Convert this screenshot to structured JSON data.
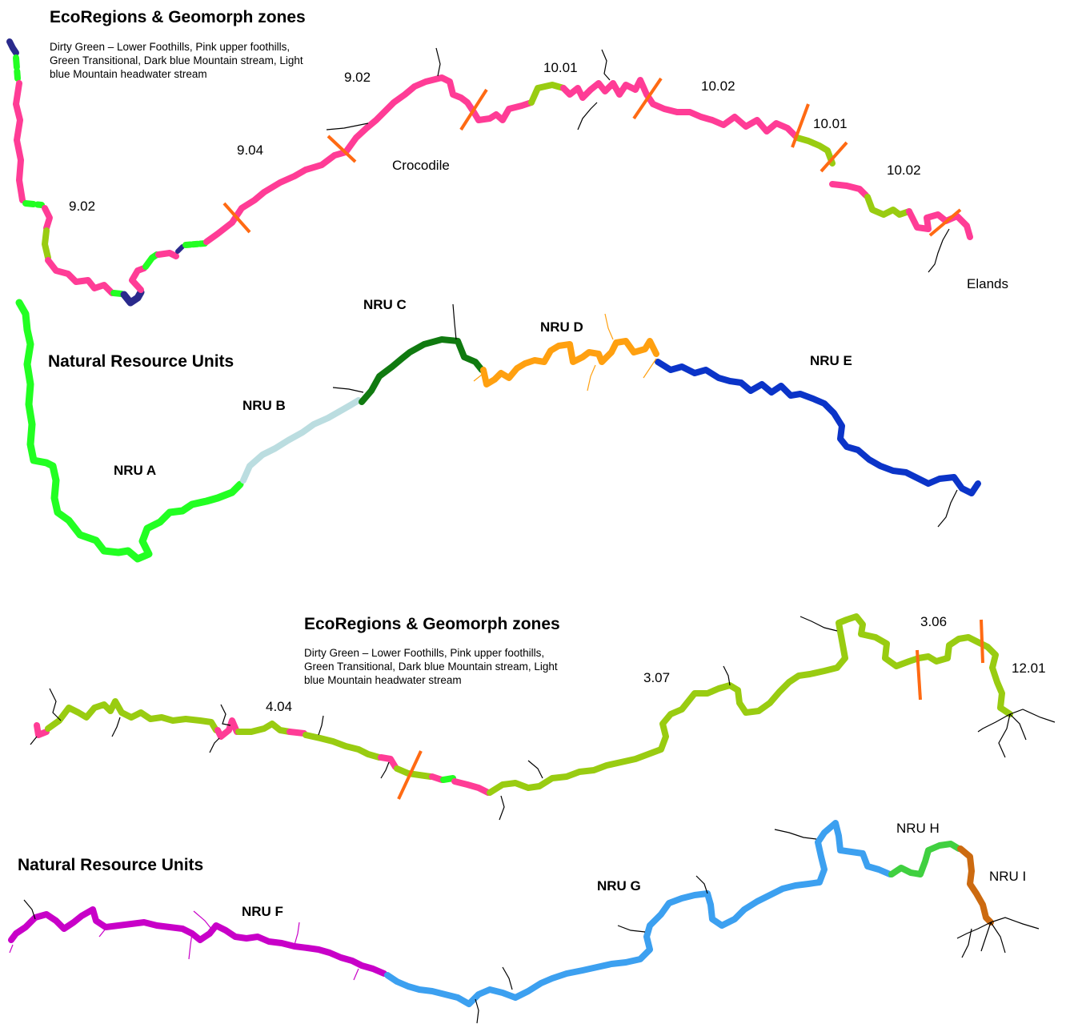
{
  "colors": {
    "dirty_green": "#99cc11",
    "pink": "#ff3c96",
    "green": "#22ff22",
    "dark_blue": "#2a2a8c",
    "light_blue": "#bbdde0",
    "nru_dark_green": "#107a10",
    "nru_orange": "#ffa010",
    "nru_blue": "#0b34c8",
    "nru_magenta": "#c800c8",
    "nru_sky": "#3ca0f0",
    "nru_green2": "#40d040",
    "nru_brown": "#cc6a10",
    "boundary": "#ff6a13",
    "tributary": "#000000"
  },
  "panel1": {
    "title": "EcoRegions & Geomorph zones",
    "legend": [
      "Dirty Green – Lower Foothills, Pink upper foothills,",
      "Green Transitional, Dark blue Mountain stream, Light",
      "blue Mountain headwater stream"
    ],
    "labels": {
      "z902_top": "9.02",
      "z902_left": "9.02",
      "z904": "9.04",
      "z1001_a": "10.01",
      "z1002_a": "10.02",
      "z1001_b": "10.01",
      "z1002_b": "10.02",
      "river": "Crocodile",
      "tributary": "Elands"
    }
  },
  "panel2": {
    "title": "Natural Resource Units",
    "labels": {
      "a": "NRU A",
      "b": "NRU B",
      "c": "NRU C",
      "d": "NRU D",
      "e": "NRU E"
    }
  },
  "panel3": {
    "title": "EcoRegions & Geomorph zones",
    "legend": [
      "Dirty Green – Lower Foothills, Pink upper foothills,",
      "Green Transitional, Dark blue Mountain stream, Light",
      "blue Mountain headwater stream"
    ],
    "labels": {
      "z404": "4.04",
      "z307": "3.07",
      "z306": "3.06",
      "z1201": "12.01"
    }
  },
  "panel4": {
    "title": "Natural Resource Units",
    "labels": {
      "f": "NRU F",
      "g": "NRU G",
      "h": "NRU H",
      "i": "NRU I"
    }
  }
}
